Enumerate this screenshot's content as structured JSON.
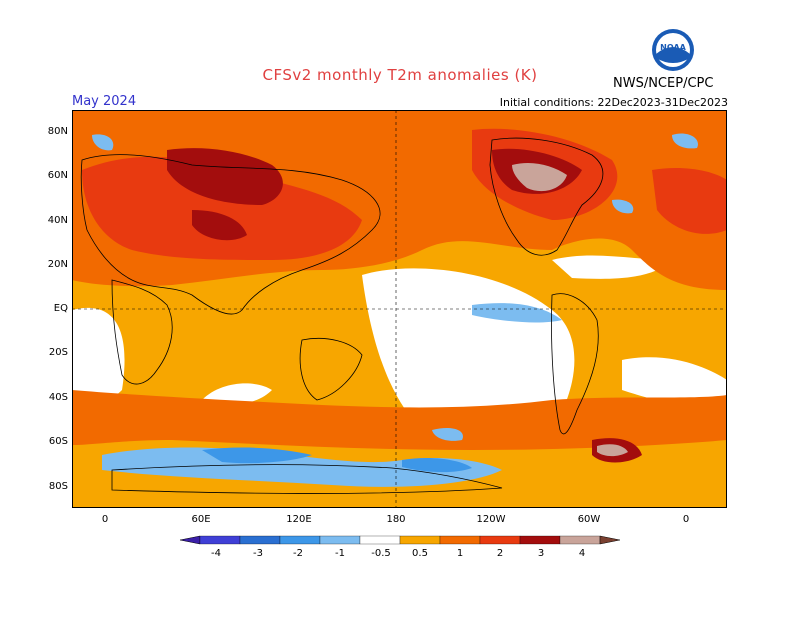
{
  "header": {
    "title": "CFSv2 monthly T2m anomalies (K)",
    "month": "May 2024",
    "initial_conditions": "Initial conditions: 22Dec2023-31Dec2023",
    "org": "NWS/NCEP/CPC",
    "logo_text": "NOAA"
  },
  "axes": {
    "lat_labels": [
      "80N",
      "60N",
      "40N",
      "20N",
      "EQ",
      "20S",
      "40S",
      "60S",
      "80S"
    ],
    "lon_labels": [
      "0",
      "60E",
      "120E",
      "180",
      "120W",
      "60W",
      "0"
    ]
  },
  "colorbar": {
    "labels": [
      "-4",
      "-3",
      "-2",
      "-1",
      "-0.5",
      "0.5",
      "1",
      "2",
      "3",
      "4"
    ],
    "colors": [
      "#3b1fa8",
      "#3f3fd6",
      "#2a6fd1",
      "#3d97e8",
      "#7cbcf0",
      "#ffffff",
      "#f7a600",
      "#f26a00",
      "#e83a10",
      "#a30d0d",
      "#c9a49a",
      "#7a4030"
    ]
  },
  "colors": {
    "ocean_base": "#ffffff",
    "warm_light": "#f7a600",
    "warm_mid": "#f26a00",
    "warm_strong": "#e83a10",
    "warm_dark": "#a30d0d",
    "warm_extreme": "#c9a49a",
    "cold_light": "#7cbcf0",
    "cold_mid": "#3d97e8"
  }
}
